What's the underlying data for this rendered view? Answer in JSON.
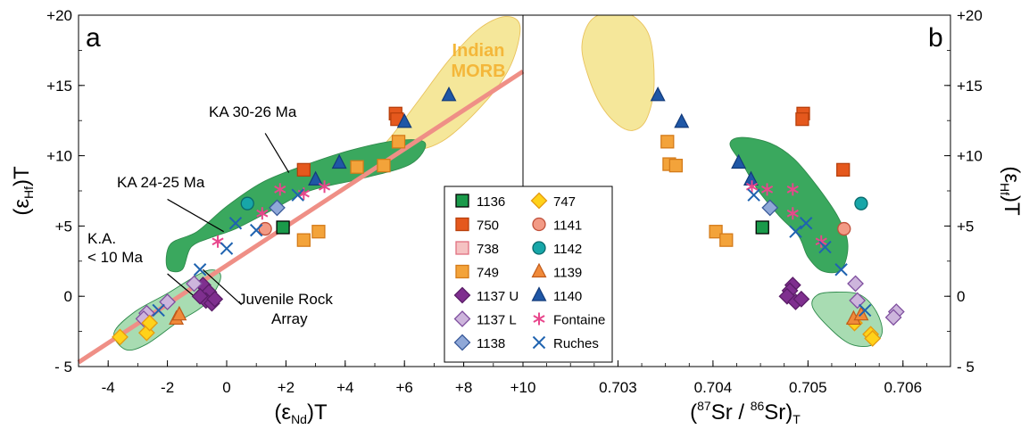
{
  "chart_data": [
    {
      "type": "scatter",
      "panel_letter": "a",
      "xlabel": "(εNd)T",
      "xlabel_main": "(ε",
      "xlabel_sub": "Nd",
      "xlabel_tail": ")T",
      "ylabel_main": "(ε",
      "ylabel_sub": "Hf",
      "ylabel_tail": ")T",
      "xlim": [
        -5,
        10
      ],
      "ylim": [
        -5,
        20
      ],
      "x_ticks": [
        -4,
        -2,
        0,
        2,
        4,
        6,
        8,
        10
      ],
      "x_tick_labels": [
        "-4",
        "-2",
        "0",
        "+2",
        "+4",
        "+6",
        "+8",
        "+10"
      ],
      "y_ticks": [
        -5,
        0,
        5,
        10,
        15,
        20
      ],
      "y_tick_labels": [
        "- 5",
        "0",
        "+5",
        "+10",
        "+15",
        "+20"
      ],
      "trend_line": [
        [
          -5,
          -4.7
        ],
        [
          10,
          16
        ]
      ],
      "fields": [
        {
          "name": "Indian MORB",
          "label_lines": [
            "Indian",
            "MORB"
          ],
          "color": "#f5e79a",
          "polygon": [
            [
              5.2,
              10.5
            ],
            [
              4.8,
              9.6
            ],
            [
              5.6,
              11.5
            ],
            [
              6.5,
              14
            ],
            [
              7.5,
              16.8
            ],
            [
              8.5,
              19
            ],
            [
              9.4,
              19.9
            ],
            [
              9.9,
              19.2
            ],
            [
              9.6,
              16.5
            ],
            [
              8.8,
              14
            ],
            [
              7.4,
              11.2
            ],
            [
              6.2,
              10.3
            ]
          ]
        },
        {
          "name": "KA 24-30 Ma",
          "color": "#3aa85e",
          "polygon": [
            [
              -2.0,
              2.0
            ],
            [
              -1.9,
              3.7
            ],
            [
              -1.0,
              4.6
            ],
            [
              0.0,
              6.4
            ],
            [
              1.2,
              8.1
            ],
            [
              2.6,
              9.3
            ],
            [
              4.2,
              10.4
            ],
            [
              5.8,
              11.1
            ],
            [
              6.7,
              10.9
            ],
            [
              6.2,
              9.4
            ],
            [
              4.6,
              8.4
            ],
            [
              2.8,
              7.5
            ],
            [
              1.5,
              6.1
            ],
            [
              0.3,
              4.8
            ],
            [
              -0.5,
              4.2
            ],
            [
              -1.2,
              3.5
            ],
            [
              -1.5,
              1.9
            ]
          ]
        },
        {
          "name": "K.A. < 10 Ma",
          "color": "#a8dcb2",
          "polygon": [
            [
              -3.8,
              -2.6
            ],
            [
              -3.1,
              -1.1
            ],
            [
              -2.0,
              0.2
            ],
            [
              -0.7,
              1.8
            ],
            [
              -0.2,
              1.4
            ],
            [
              -0.7,
              -0.5
            ],
            [
              -1.7,
              -1.9
            ],
            [
              -2.7,
              -3.4
            ],
            [
              -3.4,
              -3.8
            ]
          ]
        }
      ],
      "annotations": [
        {
          "text": "KA 30-26 Ma",
          "x": -0.4,
          "y": 13.2,
          "pointer": [
            [
              1.3,
              11.6
            ],
            [
              2.1,
              8.8
            ]
          ]
        },
        {
          "text": "KA 24-25 Ma",
          "x": -4.0,
          "y": 8.3,
          "pointer": [
            [
              -2.0,
              6.9
            ],
            [
              -0.1,
              4.6
            ]
          ]
        },
        {
          "text": "K.A.",
          "x": -4.6,
          "y": 4.0
        },
        {
          "text": "< 10 Ma",
          "x": -4.6,
          "y": 2.3,
          "pointer": [
            [
              -2.0,
              1.6
            ],
            [
              -0.7,
              -0.7
            ]
          ]
        },
        {
          "text": "Juvenile Rock",
          "x": 0.5,
          "y": -0.5
        },
        {
          "text": "Array",
          "x": 1.5,
          "y": -2.2,
          "pointer": [
            [
              -0.8,
              1.9
            ],
            [
              0.5,
              -0.6
            ]
          ]
        }
      ],
      "series": [
        {
          "name": "1136",
          "marker": "square",
          "fill": "#1a9a4a",
          "stroke": "#000000",
          "points": [
            [
              1.9,
              4.9
            ]
          ]
        },
        {
          "name": "750",
          "marker": "square",
          "fill": "#e5581d",
          "stroke": "#b8400c",
          "points": [
            [
              5.7,
              13.0
            ],
            [
              5.75,
              12.6
            ],
            [
              2.6,
              9.0
            ]
          ]
        },
        {
          "name": "738",
          "marker": "square",
          "fill": "#f5c2c2",
          "stroke": "#e07080",
          "points": []
        },
        {
          "name": "749",
          "marker": "square",
          "fill": "#f3a33a",
          "stroke": "#d47b1a",
          "points": [
            [
              5.8,
              11.0
            ],
            [
              5.3,
              9.3
            ],
            [
              4.4,
              9.2
            ],
            [
              2.6,
              4.0
            ],
            [
              3.1,
              4.6
            ]
          ]
        },
        {
          "name": "1137 U",
          "marker": "diamond",
          "fill": "#7f2f8f",
          "stroke": "#5a1d67",
          "points": [
            [
              -0.8,
              0.8
            ],
            [
              -0.6,
              0.3
            ],
            [
              -0.7,
              -0.3
            ],
            [
              -0.5,
              -0.5
            ],
            [
              -0.9,
              0.0
            ],
            [
              -0.4,
              -0.2
            ]
          ]
        },
        {
          "name": "1137 L",
          "marker": "diamond",
          "fill": "#cdb5dc",
          "stroke": "#7f4f9f",
          "points": [
            [
              -1.1,
              0.9
            ],
            [
              -2.0,
              -0.4
            ],
            [
              -2.7,
              -1.2
            ],
            [
              -2.8,
              -1.6
            ]
          ]
        },
        {
          "name": "1138",
          "marker": "diamond",
          "fill": "#8fa8d8",
          "stroke": "#3a5a9a",
          "points": [
            [
              1.7,
              6.3
            ]
          ]
        },
        {
          "name": "747",
          "marker": "diamond",
          "fill": "#ffd21a",
          "stroke": "#e59a10",
          "points": [
            [
              -3.6,
              -2.9
            ],
            [
              -2.7,
              -2.6
            ],
            [
              -2.6,
              -1.9
            ]
          ]
        },
        {
          "name": "1141",
          "marker": "circle",
          "fill": "#f29a85",
          "stroke": "#c0503a",
          "points": [
            [
              1.3,
              4.8
            ]
          ]
        },
        {
          "name": "1142",
          "marker": "circle",
          "fill": "#17a6a8",
          "stroke": "#0a6a6c",
          "points": [
            [
              0.7,
              6.6
            ]
          ]
        },
        {
          "name": "1139",
          "marker": "triangle",
          "fill": "#f08a3a",
          "stroke": "#c05a1a",
          "points": [
            [
              -1.7,
              -1.6
            ],
            [
              -1.6,
              -1.3
            ]
          ]
        },
        {
          "name": "1140",
          "marker": "triangle",
          "fill": "#1f57a6",
          "stroke": "#123a7a",
          "points": [
            [
              7.5,
              14.3
            ],
            [
              6.0,
              12.4
            ],
            [
              3.8,
              9.5
            ],
            [
              3.0,
              8.3
            ]
          ]
        },
        {
          "name": "Fontaine",
          "marker": "asterisk",
          "fill": "none",
          "stroke": "#e8478c",
          "points": [
            [
              -0.3,
              3.9
            ],
            [
              1.2,
              5.9
            ],
            [
              1.8,
              7.6
            ],
            [
              2.6,
              7.3
            ],
            [
              3.3,
              7.8
            ]
          ]
        },
        {
          "name": "Ruches",
          "marker": "x",
          "fill": "none",
          "stroke": "#1f63b0",
          "points": [
            [
              -2.3,
              -1.0
            ],
            [
              -0.9,
              1.9
            ],
            [
              0.0,
              3.4
            ],
            [
              0.3,
              5.2
            ],
            [
              1.0,
              4.7
            ],
            [
              2.4,
              7.2
            ]
          ]
        }
      ]
    },
    {
      "type": "scatter",
      "panel_letter": "b",
      "xlabel_prefix": "(",
      "xlabel_sup1": "87",
      "xlabel_mid": "Sr / ",
      "xlabel_sup2": "86",
      "xlabel_tail": "Sr)",
      "xlabel_sub": "T",
      "ylabel_main": "(ε",
      "ylabel_sub": "Hf",
      "ylabel_tail": ")T",
      "xlim": [
        0.702,
        0.7065
      ],
      "ylim": [
        -5,
        20
      ],
      "x_ticks": [
        0.703,
        0.704,
        0.705,
        0.706
      ],
      "x_tick_labels": [
        "0.703",
        "0.704",
        "0.705",
        "0.706"
      ],
      "y_ticks": [
        -5,
        0,
        5,
        10,
        15,
        20
      ],
      "y_tick_labels": [
        "- 5",
        "0",
        "+5",
        "+10",
        "+15",
        "+20"
      ],
      "fields": [
        {
          "name": "Indian MORB",
          "color": "#f5e79a",
          "polygon": [
            [
              0.70262,
              17.8
            ],
            [
              0.70268,
              15.8
            ],
            [
              0.70282,
              13.6
            ],
            [
              0.703,
              12.2
            ],
            [
              0.70316,
              11.8
            ],
            [
              0.7033,
              12.6
            ],
            [
              0.70338,
              15.0
            ],
            [
              0.70333,
              18.5
            ],
            [
              0.70312,
              20.1
            ],
            [
              0.70288,
              20.2
            ],
            [
              0.7027,
              19.5
            ]
          ]
        },
        {
          "name": "KA 24-30 Ma",
          "color": "#3aa85e",
          "polygon": [
            [
              0.70418,
              10.8
            ],
            [
              0.70432,
              9.3
            ],
            [
              0.70448,
              7.5
            ],
            [
              0.7047,
              5.7
            ],
            [
              0.7049,
              4.3
            ],
            [
              0.705,
              2.8
            ],
            [
              0.70515,
              1.8
            ],
            [
              0.70535,
              1.9
            ],
            [
              0.70542,
              3.7
            ],
            [
              0.70532,
              5.6
            ],
            [
              0.7051,
              7.8
            ],
            [
              0.70485,
              9.8
            ],
            [
              0.7046,
              10.9
            ],
            [
              0.7043,
              11.3
            ]
          ]
        },
        {
          "name": "K.A. < 10 Ma",
          "color": "#a8dcb2",
          "polygon": [
            [
              0.70505,
              -0.8
            ],
            [
              0.70525,
              -2.4
            ],
            [
              0.70545,
              -3.4
            ],
            [
              0.70566,
              -3.5
            ],
            [
              0.70578,
              -2.6
            ],
            [
              0.70572,
              -1.1
            ],
            [
              0.70555,
              0.1
            ],
            [
              0.7053,
              0.3
            ],
            [
              0.7051,
              0.1
            ]
          ]
        }
      ],
      "series": [
        {
          "name": "1136",
          "marker": "square",
          "fill": "#1a9a4a",
          "stroke": "#000000",
          "points": [
            [
              0.70452,
              4.9
            ]
          ]
        },
        {
          "name": "750",
          "marker": "square",
          "fill": "#e5581d",
          "stroke": "#b8400c",
          "points": [
            [
              0.70495,
              13.0
            ],
            [
              0.70494,
              12.6
            ],
            [
              0.70537,
              9.0
            ]
          ]
        },
        {
          "name": "749",
          "marker": "square",
          "fill": "#f3a33a",
          "stroke": "#d47b1a",
          "points": [
            [
              0.70352,
              11.0
            ],
            [
              0.70354,
              9.4
            ],
            [
              0.70361,
              9.3
            ],
            [
              0.70403,
              4.6
            ],
            [
              0.70414,
              4.0
            ]
          ]
        },
        {
          "name": "1137 U",
          "marker": "diamond",
          "fill": "#7f2f8f",
          "stroke": "#5a1d67",
          "points": [
            [
              0.70484,
              0.8
            ],
            [
              0.70481,
              0.4
            ],
            [
              0.70478,
              0.0
            ],
            [
              0.70487,
              -0.4
            ],
            [
              0.70493,
              -0.2
            ]
          ]
        },
        {
          "name": "1137 L",
          "marker": "diamond",
          "fill": "#cdb5dc",
          "stroke": "#7f4f9f",
          "points": [
            [
              0.7055,
              0.9
            ],
            [
              0.70552,
              -0.3
            ],
            [
              0.70593,
              -1.1
            ],
            [
              0.7059,
              -1.5
            ]
          ]
        },
        {
          "name": "1138",
          "marker": "diamond",
          "fill": "#8fa8d8",
          "stroke": "#3a5a9a",
          "points": [
            [
              0.7046,
              6.3
            ]
          ]
        },
        {
          "name": "747",
          "marker": "diamond",
          "fill": "#ffd21a",
          "stroke": "#e59a10",
          "points": [
            [
              0.70549,
              -1.9
            ],
            [
              0.70566,
              -2.7
            ],
            [
              0.70568,
              -3.0
            ]
          ]
        },
        {
          "name": "1141",
          "marker": "circle",
          "fill": "#f29a85",
          "stroke": "#c0503a",
          "points": [
            [
              0.70538,
              4.8
            ]
          ]
        },
        {
          "name": "1142",
          "marker": "circle",
          "fill": "#17a6a8",
          "stroke": "#0a6a6c",
          "points": [
            [
              0.70556,
              6.6
            ]
          ]
        },
        {
          "name": "1139",
          "marker": "triangle",
          "fill": "#f08a3a",
          "stroke": "#c05a1a",
          "points": [
            [
              0.70548,
              -1.6
            ],
            [
              0.70556,
              -1.3
            ]
          ]
        },
        {
          "name": "1140",
          "marker": "triangle",
          "fill": "#1f57a6",
          "stroke": "#123a7a",
          "points": [
            [
              0.70342,
              14.3
            ],
            [
              0.70367,
              12.4
            ],
            [
              0.70427,
              9.5
            ],
            [
              0.7044,
              8.3
            ]
          ]
        },
        {
          "name": "Fontaine",
          "marker": "asterisk",
          "fill": "none",
          "stroke": "#e8478c",
          "points": [
            [
              0.70441,
              7.8
            ],
            [
              0.70457,
              7.6
            ],
            [
              0.70484,
              7.6
            ],
            [
              0.70484,
              5.9
            ],
            [
              0.70514,
              3.9
            ]
          ]
        },
        {
          "name": "Ruches",
          "marker": "x",
          "fill": "none",
          "stroke": "#1f63b0",
          "points": [
            [
              0.70443,
              7.2
            ],
            [
              0.70487,
              4.6
            ],
            [
              0.70498,
              5.2
            ],
            [
              0.70518,
              3.5
            ],
            [
              0.70535,
              1.9
            ],
            [
              0.7056,
              -1.0
            ]
          ]
        }
      ]
    }
  ],
  "legend": {
    "columns": [
      [
        "1136",
        "750",
        "738",
        "749",
        "1137 U",
        "1137 L",
        "1138"
      ],
      [
        "747",
        "1141",
        "1142",
        "1139",
        "1140",
        "Fontaine",
        "Ruches"
      ]
    ]
  }
}
